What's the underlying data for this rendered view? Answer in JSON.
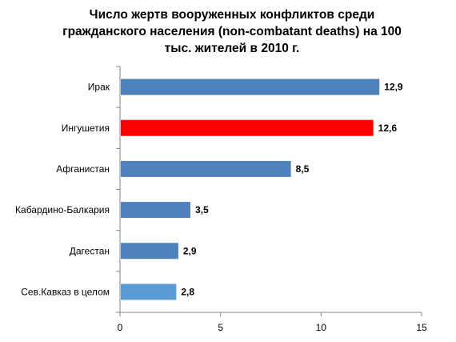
{
  "chart_data": {
    "type": "bar",
    "orientation": "horizontal",
    "title_lines": [
      "Число жертв вооруженных конфликтов среди",
      "гражданского населения (non-combatant deaths) на 100",
      "тыс. жителей в 2010 г."
    ],
    "categories": [
      "Ирак",
      "Ингушетия",
      "Афганистан",
      "Кабардино-Балкария",
      "Дагестан",
      "Сев.Кавказ в целом"
    ],
    "values": [
      12.9,
      12.6,
      8.5,
      3.5,
      2.9,
      2.8
    ],
    "value_labels": [
      "12,9",
      "12,6",
      "8,5",
      "3,5",
      "2,9",
      "2,8"
    ],
    "bar_colors": [
      "#4f81bd",
      "#ff0000",
      "#4f81bd",
      "#4f81bd",
      "#4f81bd",
      "#5b9bd5"
    ],
    "xlim": [
      0,
      15
    ],
    "xticks": [
      0,
      5,
      10,
      15
    ],
    "xtick_labels": [
      "0",
      "5",
      "10",
      "15"
    ],
    "xlabel": "",
    "ylabel": "",
    "grid": false,
    "legend": "none"
  }
}
